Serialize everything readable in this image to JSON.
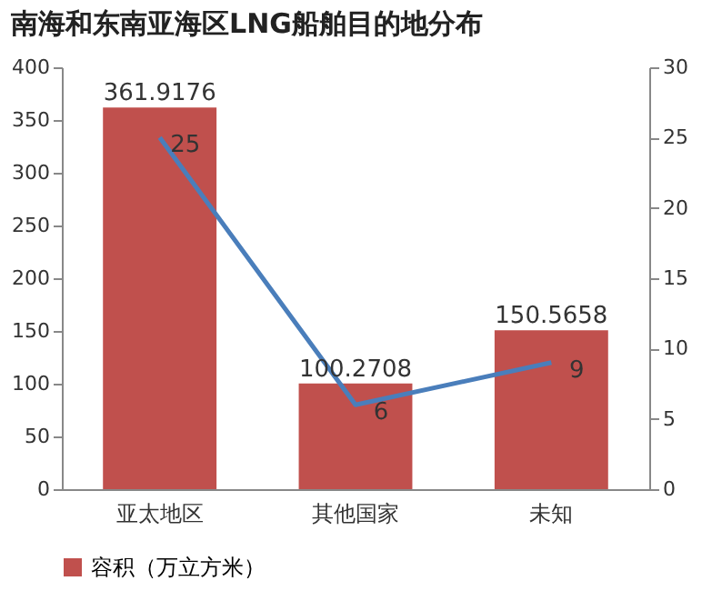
{
  "chart_data": {
    "type": "bar",
    "title": "南海和东南亚海区LNG船舶目的地分布",
    "categories": [
      "亚太地区",
      "其他国家",
      "未知"
    ],
    "series": [
      {
        "name": "容积（万立方米）",
        "color": "#c0504d",
        "values": [
          361.9176,
          100.2708,
          150.5658
        ]
      },
      {
        "type": "line",
        "axis": "y2",
        "color": "#4a7ebb",
        "values": [
          25,
          6,
          9
        ]
      }
    ],
    "ylim": [
      0,
      400
    ],
    "yticks": [
      0,
      50,
      100,
      150,
      200,
      250,
      300,
      350,
      400
    ],
    "y2lim": [
      0,
      30
    ],
    "y2ticks": [
      0,
      5,
      10,
      15,
      20,
      25,
      30
    ],
    "data_labels": true,
    "grid": false,
    "legend": "bottom",
    "marker": "none",
    "line_style": "solid"
  }
}
